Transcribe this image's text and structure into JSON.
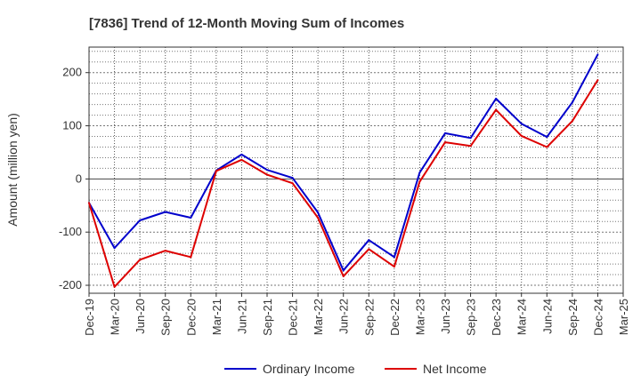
{
  "chart_data": {
    "type": "line",
    "title": "[7836]  Trend of 12-Month Moving Sum of Incomes",
    "xlabel": "",
    "ylabel": "Amount (million yen)",
    "categories": [
      "Dec-19",
      "Mar-20",
      "Jun-20",
      "Sep-20",
      "Dec-20",
      "Mar-21",
      "Jun-21",
      "Sep-21",
      "Dec-21",
      "Mar-22",
      "Jun-22",
      "Sep-22",
      "Dec-22",
      "Mar-23",
      "Jun-23",
      "Sep-23",
      "Dec-23",
      "Mar-24",
      "Jun-24",
      "Sep-24",
      "Dec-24",
      "Mar-25"
    ],
    "ylim": [
      -215,
      248
    ],
    "yticks": [
      200,
      100,
      0,
      -100,
      -200
    ],
    "ytick_labels": [
      "200",
      "100",
      "0",
      "-100",
      "-200"
    ],
    "grid": true,
    "legend_position": "bottom",
    "series": [
      {
        "name": "Ordinary Income",
        "color": "#0000cc",
        "values": [
          -45,
          -130,
          -78,
          -62,
          -73,
          16,
          46,
          17,
          2,
          -63,
          -172,
          -115,
          -147,
          12,
          86,
          77,
          151,
          104,
          79,
          144,
          234,
          null
        ]
      },
      {
        "name": "Net Income",
        "color": "#dd0000",
        "values": [
          -45,
          -203,
          -152,
          -135,
          -147,
          15,
          36,
          8,
          -8,
          -73,
          -183,
          -132,
          -165,
          -5,
          69,
          62,
          130,
          81,
          60,
          109,
          186,
          null
        ]
      }
    ]
  }
}
